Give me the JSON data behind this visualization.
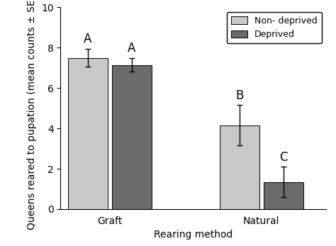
{
  "groups": [
    "Graft",
    "Natural"
  ],
  "subgroups": [
    "Non- deprived",
    "Deprived"
  ],
  "values": [
    [
      7.5,
      7.15
    ],
    [
      4.15,
      1.35
    ]
  ],
  "errors": [
    [
      0.45,
      0.35
    ],
    [
      1.0,
      0.75
    ]
  ],
  "letters": [
    [
      "A",
      "A"
    ],
    [
      "B",
      "C"
    ]
  ],
  "bar_colors": [
    "#c8c8c8",
    "#6b6b6b"
  ],
  "bar_edge_color": "#000000",
  "ylabel": "Queens reared to pupation (mean counts ± SEM)",
  "xlabel": "Rearing method",
  "ylim": [
    0,
    10
  ],
  "yticks": [
    0,
    2,
    4,
    6,
    8,
    10
  ],
  "group_positions": [
    1.0,
    3.0
  ],
  "bar_width": 0.52,
  "legend_labels": [
    "Non- deprived",
    "Deprived"
  ],
  "legend_colors": [
    "#c8c8c8",
    "#6b6b6b"
  ],
  "background_color": "#ffffff",
  "letter_fontsize": 12,
  "axis_fontsize": 10,
  "tick_fontsize": 10,
  "legend_fontsize": 9,
  "capsize": 3
}
